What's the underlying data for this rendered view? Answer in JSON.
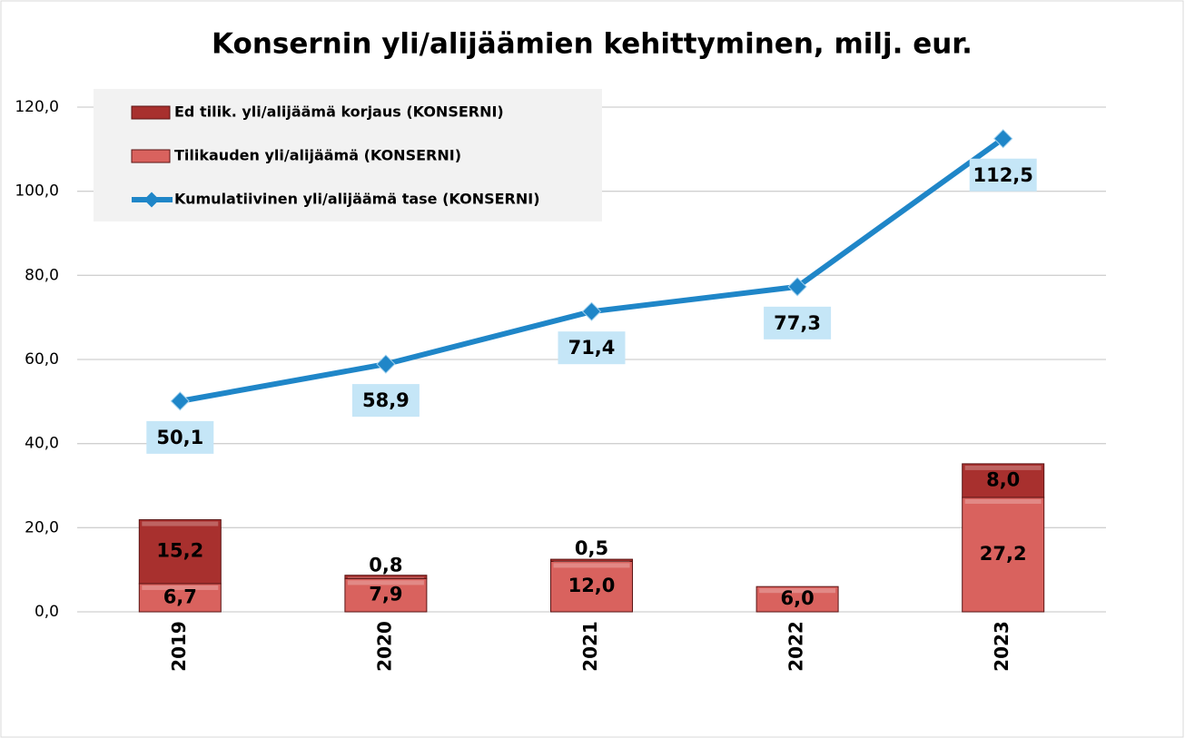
{
  "chart_data": {
    "type": "bar-line",
    "title": "Konsernin yli/alijäämien kehittyminen, milj. eur.",
    "categories": [
      "2019",
      "2020",
      "2021",
      "2022",
      "2023"
    ],
    "series": [
      {
        "name": "Ed tilik. yli/alijäämä korjaus (KONSERNI)",
        "type": "bar",
        "color": "#a8302e",
        "values": [
          15.2,
          0.8,
          0.5,
          null,
          8.0
        ],
        "value_labels": [
          "15,2",
          "0,8",
          "0,5",
          null,
          "8,0"
        ]
      },
      {
        "name": "Tilikauden yli/alijäämä (KONSERNI)",
        "type": "bar",
        "color": "#d9625e",
        "values": [
          6.7,
          7.9,
          12.0,
          6.0,
          27.2
        ],
        "value_labels": [
          "6,7",
          "7,9",
          "12,0",
          "6,0",
          "27,2"
        ]
      },
      {
        "name": "Kumulatiivinen yli/alijäämä tase (KONSERNI)",
        "type": "line",
        "color": "#1f86c8",
        "values": [
          50.1,
          58.9,
          71.4,
          77.3,
          112.5
        ],
        "value_labels": [
          "50,1",
          "58,9",
          "71,4",
          "77,3",
          "112,5"
        ]
      }
    ],
    "ylim": [
      0,
      120
    ],
    "yticks": [
      {
        "value": 0,
        "label": "0,0"
      },
      {
        "value": 20,
        "label": "20,0"
      },
      {
        "value": 40,
        "label": "40,0"
      },
      {
        "value": 60,
        "label": "60,0"
      },
      {
        "value": 80,
        "label": "80,0"
      },
      {
        "value": 100,
        "label": "100,0"
      },
      {
        "value": 120,
        "label": "120,0"
      }
    ],
    "grid": true,
    "legend": "top-left"
  }
}
